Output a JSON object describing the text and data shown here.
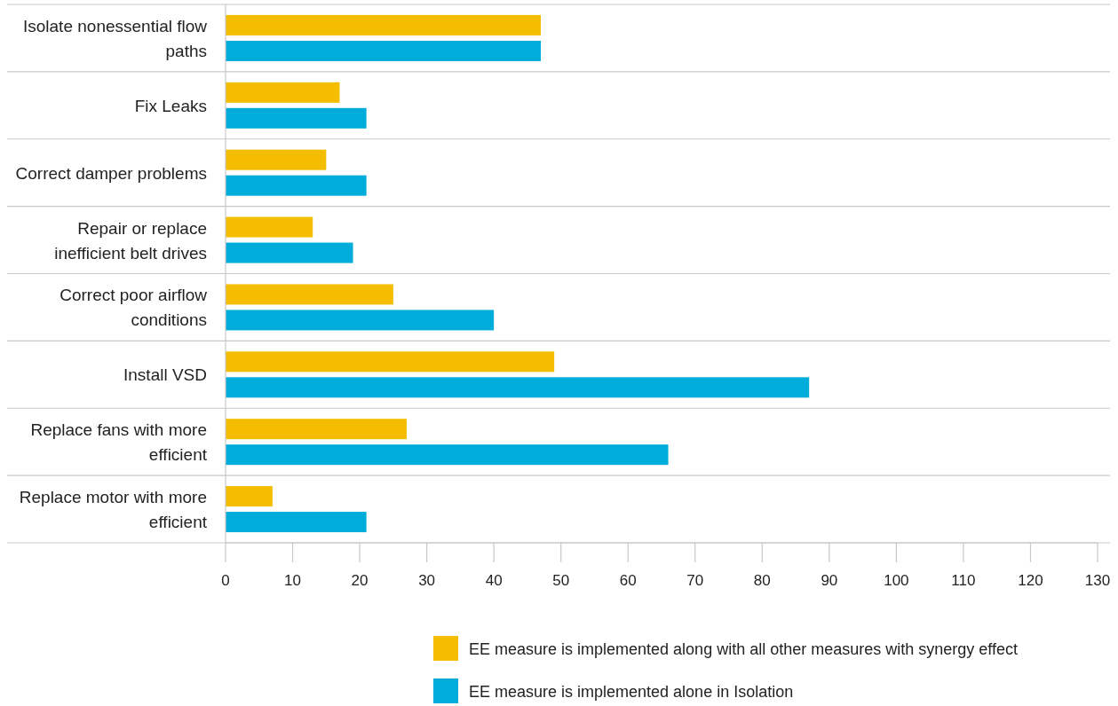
{
  "chart_data": {
    "type": "bar",
    "orientation": "horizontal",
    "categories": [
      "Isolate nonessential flow paths",
      "Fix Leaks",
      "Correct damper problems",
      "Repair or replace inefficient belt drives",
      "Correct poor airflow conditions",
      "Install VSD",
      "Replace fans with more efficient",
      "Replace motor with more efficient"
    ],
    "series": [
      {
        "name": "EE measure is implemented along with all other measures with synergy effect",
        "color": "#f5bd00",
        "values": [
          47,
          17,
          15,
          13,
          25,
          49,
          27,
          7
        ]
      },
      {
        "name": "EE measure is implemented alone in Isolation",
        "color": "#00acd9",
        "values": [
          47,
          21,
          21,
          19,
          40,
          87,
          66,
          21
        ]
      }
    ],
    "xlim": [
      0,
      130
    ],
    "xticks": [
      0,
      10,
      20,
      30,
      40,
      50,
      60,
      70,
      80,
      90,
      100,
      110,
      120,
      130
    ],
    "grid": "y",
    "legend": "bottom"
  }
}
